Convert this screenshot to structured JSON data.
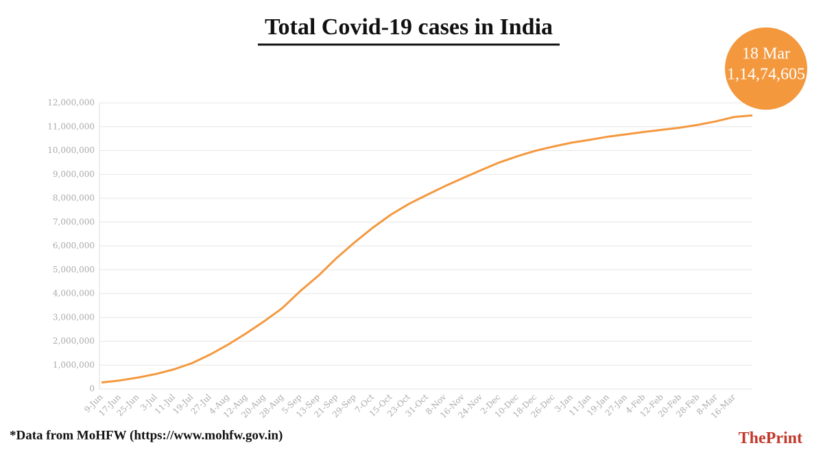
{
  "chart_data": {
    "type": "line",
    "title": "Total Covid-19 cases in India",
    "source": "*Data from MoHFW (https://www.mohfw.gov.in)",
    "brand": [
      "The",
      "Print"
    ],
    "categories": [
      "9-Jun",
      "17-Jun",
      "25-Jun",
      "3-Jul",
      "11-Jul",
      "19-Jul",
      "27-Jul",
      "4-Aug",
      "12-Aug",
      "20-Aug",
      "28-Aug",
      "5-Sep",
      "13-Sep",
      "21-Sep",
      "29-Sep",
      "7-Oct",
      "15-Oct",
      "23-Oct",
      "31-Oct",
      "8-Nov",
      "16-Nov",
      "24-Nov",
      "2-Dec",
      "10-Dec",
      "18-Dec",
      "26-Dec",
      "3-Jan",
      "11-Jan",
      "19-Jan",
      "27-Jan",
      "4-Feb",
      "12-Feb",
      "20-Feb",
      "28-Feb",
      "8-Mar",
      "16-Mar",
      "18 Mar"
    ],
    "series": [
      {
        "name": "Total cases",
        "color": "#f4983e",
        "values": [
          270000,
          355000,
          475000,
          625000,
          820000,
          1080000,
          1440000,
          1860000,
          2330000,
          2840000,
          3390000,
          4110000,
          4750000,
          5490000,
          6150000,
          6760000,
          7310000,
          7760000,
          8140000,
          8510000,
          8850000,
          9180000,
          9500000,
          9760000,
          9990000,
          10170000,
          10330000,
          10450000,
          10580000,
          10680000,
          10780000,
          10870000,
          10960000,
          11080000,
          11230000,
          11410000,
          11474605
        ],
        "value_labels": [
          null,
          null,
          null,
          null,
          null,
          null,
          null,
          null,
          null,
          null,
          null,
          null,
          null,
          null,
          null,
          null,
          null,
          null,
          null,
          null,
          null,
          null,
          null,
          null,
          null,
          null,
          null,
          null,
          null,
          null,
          null,
          null,
          null,
          null,
          null,
          null,
          "1,14,74,605"
        ]
      }
    ],
    "ylim": [
      0,
      12000000
    ],
    "yticks": [
      0,
      {
        "value": 1000000,
        "label": "1,000,000"
      },
      {
        "value": 2000000,
        "label": "2,000,000"
      },
      {
        "value": 3000000,
        "label": "3,000,000"
      },
      {
        "value": 4000000,
        "label": "4,000,000"
      },
      {
        "value": 5000000,
        "label": "5,000,000"
      },
      {
        "value": 6000000,
        "label": "6,000,000"
      },
      {
        "value": 7000000,
        "label": "7,000,000"
      },
      {
        "value": 8000000,
        "label": "8,000,000"
      },
      {
        "value": 9000000,
        "label": "9,000,000"
      },
      {
        "value": 10000000,
        "label": "10,000,000"
      },
      {
        "value": 11000000,
        "label": "11,000,000"
      },
      {
        "value": 12000000,
        "label": "12,000,000"
      }
    ],
    "grid": true
  }
}
